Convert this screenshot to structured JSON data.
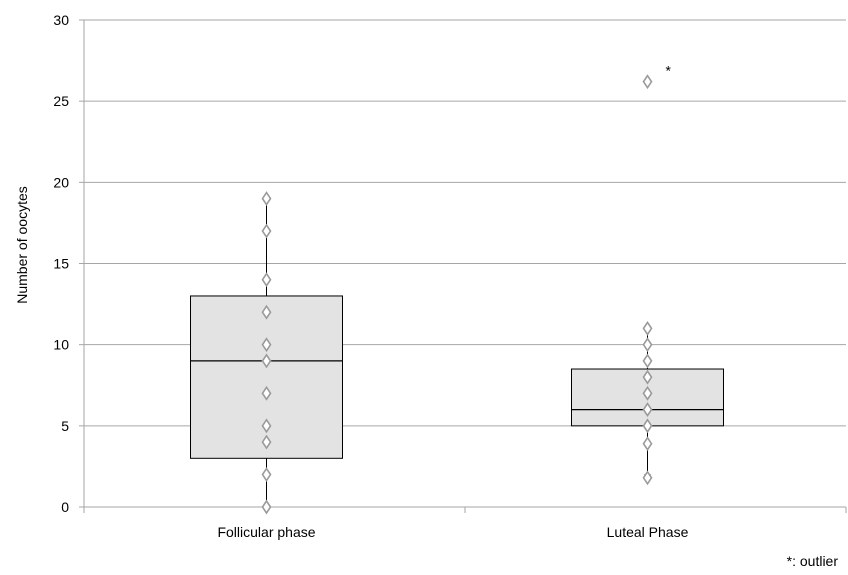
{
  "chart_data": {
    "type": "box",
    "ylabel": "Number of oocytes",
    "xlabel": "",
    "ylim": [
      0,
      30
    ],
    "yticks": [
      0,
      5,
      10,
      15,
      20,
      25,
      30
    ],
    "grid": true,
    "categories": [
      "Follicular phase",
      "Luteal Phase"
    ],
    "boxes": [
      {
        "category": "Follicular phase",
        "whisker_low": 0,
        "q1": 3,
        "median": 9,
        "q3": 13,
        "whisker_high": 19,
        "points": [
          0,
          2,
          4,
          5,
          7,
          9,
          10,
          12,
          14,
          17,
          19
        ],
        "outliers": []
      },
      {
        "category": "Luteal Phase",
        "whisker_low": 2,
        "q1": 5,
        "median": 6,
        "q3": 8.5,
        "whisker_high": 11,
        "points": [
          1.8,
          3.9,
          5,
          6,
          7,
          8,
          9,
          10,
          11
        ],
        "outliers": [
          26.2
        ]
      }
    ],
    "outlier_marker": "*",
    "footnote": "*: outlier"
  },
  "colors": {
    "box_fill": "#e3e3e3",
    "box_stroke": "#000000",
    "grid": "#a6a6a6",
    "point_stroke": "#9a9a9a"
  }
}
